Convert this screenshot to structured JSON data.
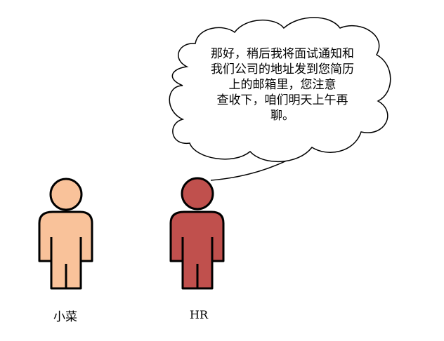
{
  "speech_bubble": {
    "lines": [
      "那好，稍后我将面试通知和",
      "我们公司的地址发到您简历",
      "上的邮箱里，您注意",
      "查收下，咱们明天上午再",
      "聊。"
    ]
  },
  "characters": [
    {
      "label": "小菜",
      "color": "#f9c29a"
    },
    {
      "label": "HR",
      "color": "#c0504d"
    }
  ],
  "colors": {
    "outline": "#000000",
    "bubble_fill": "#ffffff"
  }
}
